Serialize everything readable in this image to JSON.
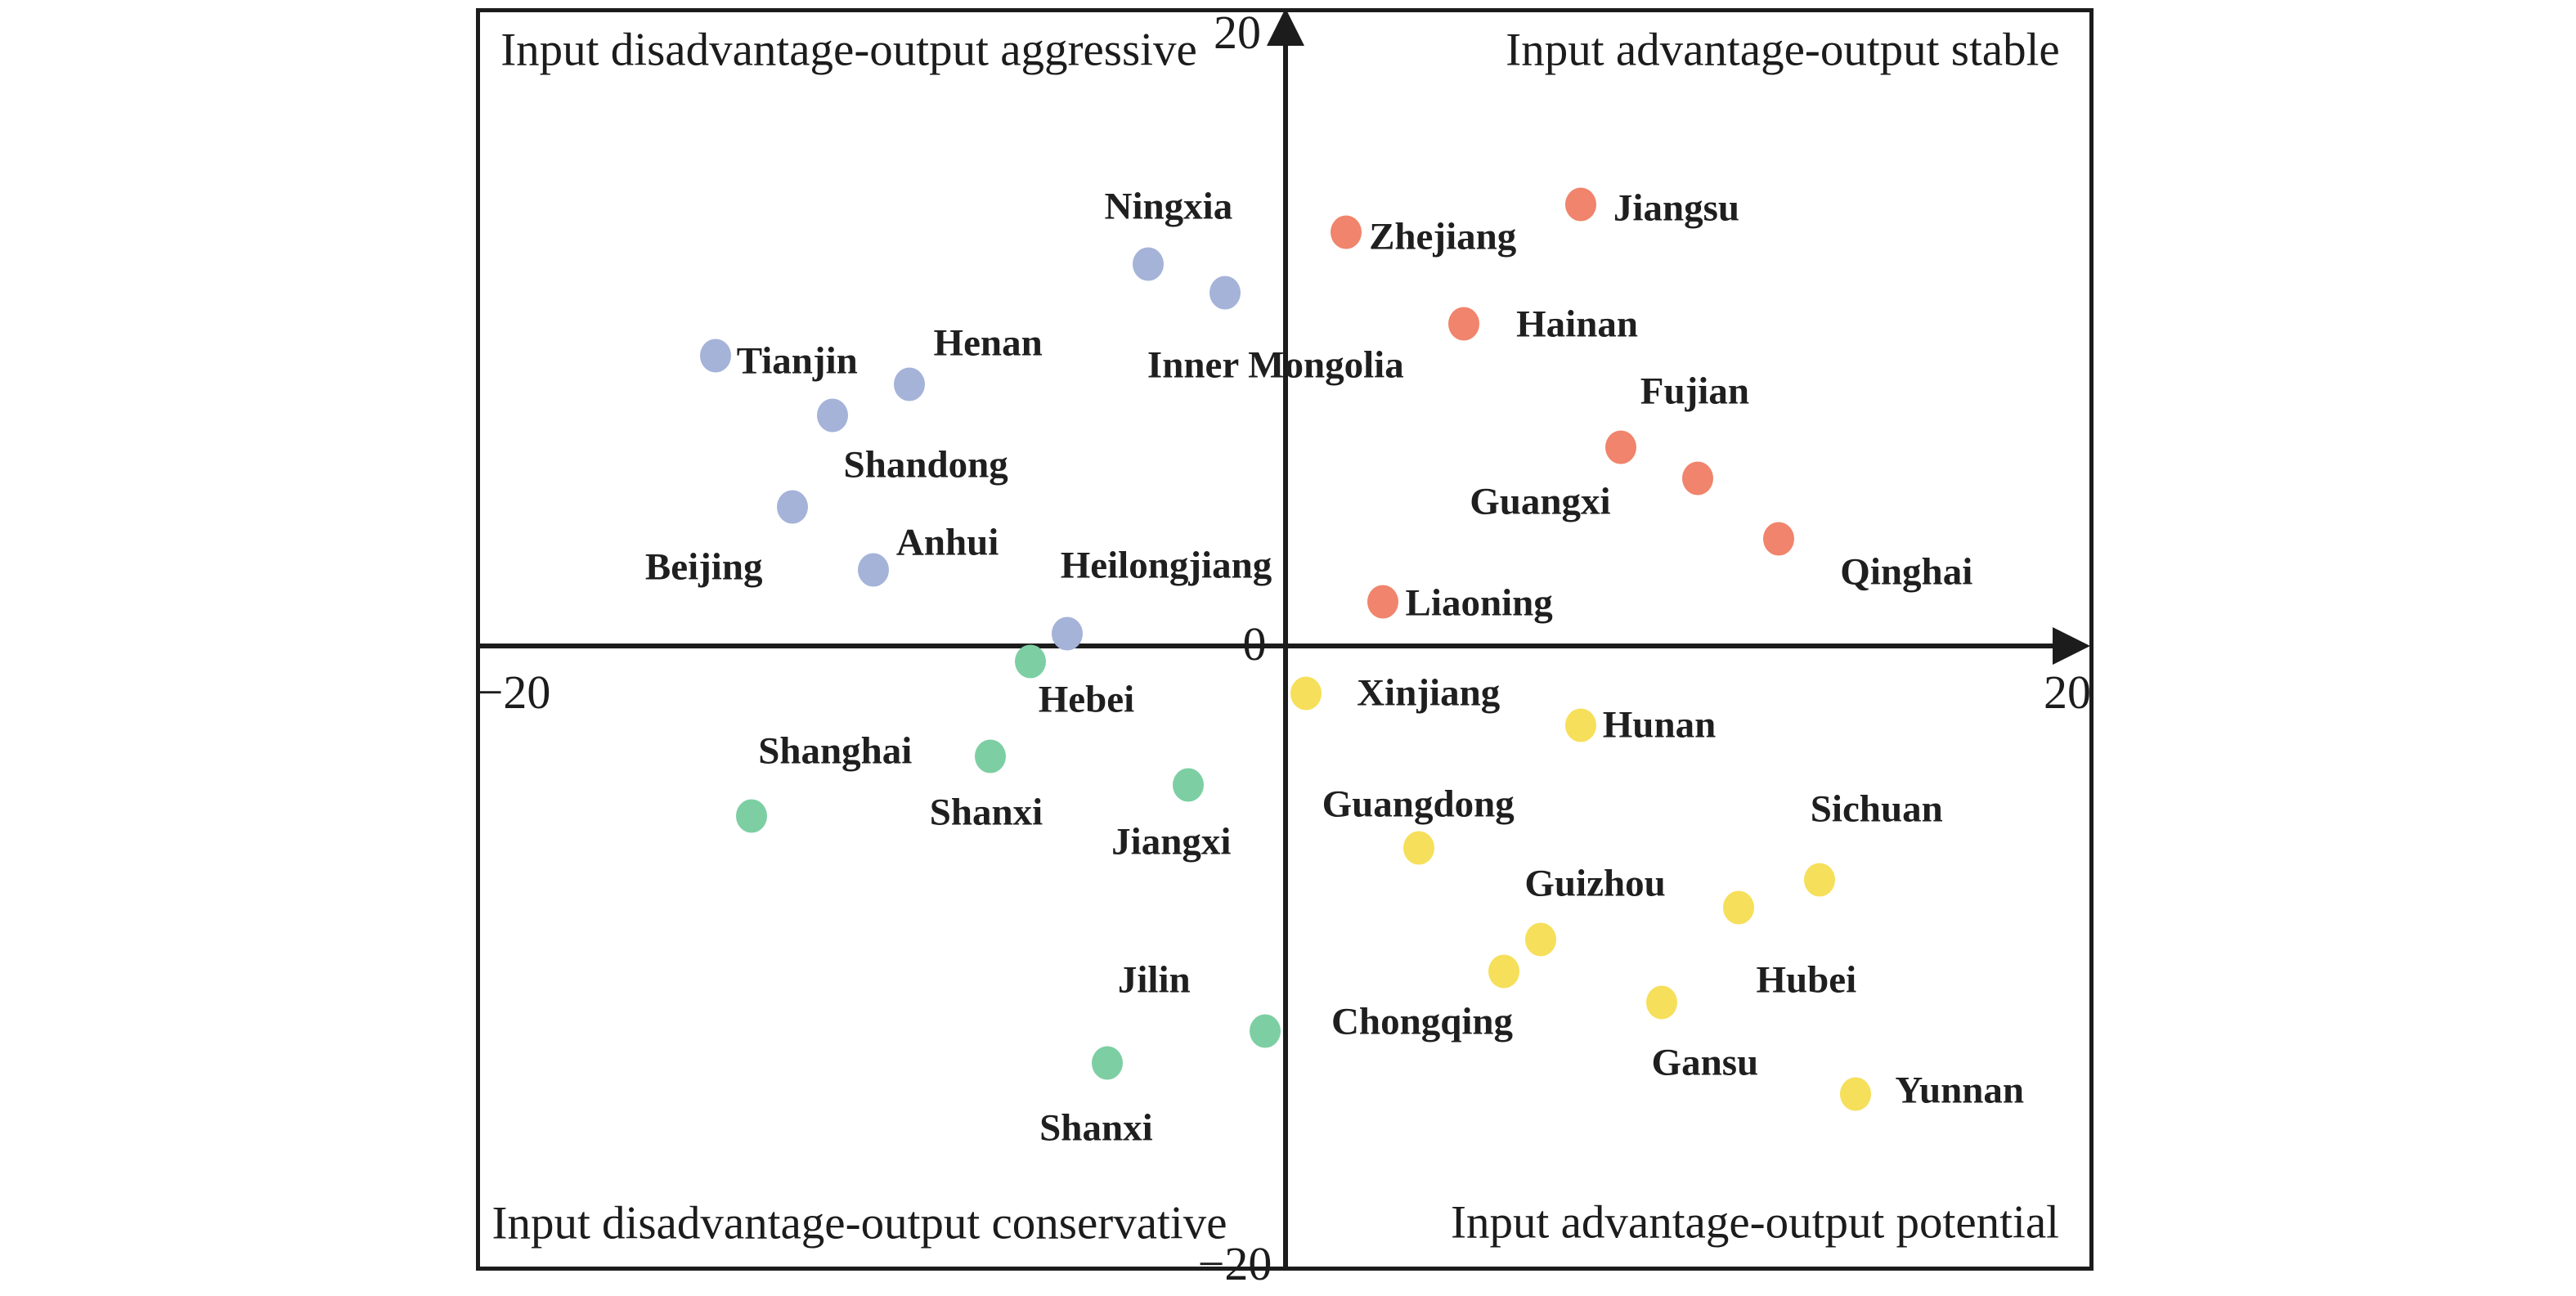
{
  "axis_ticks": {
    "top": "20",
    "right": "20",
    "left": "−20",
    "bottom": "−20",
    "origin": "0"
  },
  "chart_data": {
    "type": "scatter",
    "title": "",
    "xlabel": "",
    "ylabel": "",
    "xlim": [
      -20,
      20
    ],
    "ylim": [
      -20,
      20
    ],
    "grid": false,
    "legend": "none (points labeled directly; quadrant captions serve as group names)",
    "quadrant_labels": [
      {
        "position": "top-left",
        "text": "Input disadvantage-output aggressive"
      },
      {
        "position": "top-right",
        "text": "Input advantage-output stable"
      },
      {
        "position": "bottom-left",
        "text": "Input disadvantage-output conservative"
      },
      {
        "position": "bottom-right",
        "text": "Input advantage-output potential"
      }
    ],
    "layout_hints": {
      "marker_diameter_px": 38,
      "axis_arrows": [
        "top",
        "right"
      ],
      "tick_values_shown": [
        -20,
        0,
        20
      ]
    },
    "series": [
      {
        "name": "Input disadvantage-output aggressive",
        "color": "#A5B3D9",
        "points": [
          {
            "label": "Ningxia",
            "x": -3.4,
            "y": 12.1,
            "label_dx": 25,
            "label_dy": -70
          },
          {
            "label": "Inner Mongolia",
            "x": -1.5,
            "y": 11.2,
            "label_dx": 62,
            "label_dy": 89
          },
          {
            "label": "Tianjin",
            "x": -14.1,
            "y": 9.2,
            "label_dx": 100,
            "label_dy": 7
          },
          {
            "label": "Henan",
            "x": -9.3,
            "y": 8.3,
            "label_dx": 96,
            "label_dy": -50
          },
          {
            "label": "Shandong",
            "x": -11.2,
            "y": 7.3,
            "label_dx": 114,
            "label_dy": 61
          },
          {
            "label": "Beijing",
            "x": -12.2,
            "y": 4.4,
            "label_dx": -108,
            "label_dy": 74
          },
          {
            "label": "Anhui",
            "x": -10.2,
            "y": 2.4,
            "label_dx": 91,
            "label_dy": -33
          },
          {
            "label": "Heilongjiang",
            "x": -5.4,
            "y": 0.4,
            "label_dx": 121,
            "label_dy": -83
          }
        ]
      },
      {
        "name": "Input advantage-output stable",
        "color": "#F0846C",
        "points": [
          {
            "label": "Zhejiang",
            "x": 1.5,
            "y": 13.1,
            "label_dx": 118,
            "label_dy": 6
          },
          {
            "label": "Jiangsu",
            "x": 7.3,
            "y": 14.0,
            "label_dx": 117,
            "label_dy": 5
          },
          {
            "label": "Hainan",
            "x": 4.4,
            "y": 10.2,
            "label_dx": 139,
            "label_dy": 1
          },
          {
            "label": "Guangxi",
            "x": 8.3,
            "y": 6.3,
            "label_dx": -99,
            "label_dy": 67
          },
          {
            "label": "Fujian",
            "x": 10.2,
            "y": 5.3,
            "label_dx": -4,
            "label_dy": -106
          },
          {
            "label": "Qinghai",
            "x": 12.2,
            "y": 3.4,
            "label_dx": 156,
            "label_dy": 41
          },
          {
            "label": "Liaoning",
            "x": 2.4,
            "y": 1.4,
            "label_dx": 118,
            "label_dy": 2
          }
        ]
      },
      {
        "name": "Input disadvantage-output conservative",
        "color": "#7DCFA3",
        "points": [
          {
            "label": "Hebei",
            "x": -6.3,
            "y": -0.5,
            "label_dx": 68,
            "label_dy": 47
          },
          {
            "label": "Shanxi",
            "x": -7.3,
            "y": -3.5,
            "label_dx": -5,
            "label_dy": 69
          },
          {
            "label": "Shanghai",
            "x": -13.2,
            "y": -5.4,
            "label_dx": 102,
            "label_dy": -79
          },
          {
            "label": "Jiangxi",
            "x": -2.4,
            "y": -4.4,
            "label_dx": -21,
            "label_dy": 70
          },
          {
            "label": "Jilin",
            "x": -0.5,
            "y": -12.2,
            "label_dx": -136,
            "label_dy": -62
          },
          {
            "label": "Shanxi",
            "x": -4.4,
            "y": -13.2,
            "label_dx": -14,
            "label_dy": 80
          }
        ]
      },
      {
        "name": "Input advantage-output potential",
        "color": "#F6DF5A",
        "points": [
          {
            "label": "Xinjiang",
            "x": 0.5,
            "y": -1.5,
            "label_dx": 150,
            "label_dy": 0
          },
          {
            "label": "Hunan",
            "x": 7.3,
            "y": -2.5,
            "label_dx": 96,
            "label_dy": 0
          },
          {
            "label": "Guangdong",
            "x": 3.3,
            "y": -6.4,
            "label_dx": -1,
            "label_dy": -53
          },
          {
            "label": "Sichuan",
            "x": 13.2,
            "y": -7.4,
            "label_dx": 70,
            "label_dy": -86
          },
          {
            "label": "Guizhou",
            "x": 6.3,
            "y": -9.3,
            "label_dx": 67,
            "label_dy": -68
          },
          {
            "label": "Hubei",
            "x": 11.2,
            "y": -8.3,
            "label_dx": 83,
            "label_dy": 89
          },
          {
            "label": "Chongqing",
            "x": 5.4,
            "y": -10.3,
            "label_dx": -100,
            "label_dy": 62
          },
          {
            "label": "Gansu",
            "x": 9.3,
            "y": -11.3,
            "label_dx": 53,
            "label_dy": 74
          },
          {
            "label": "Yunnan",
            "x": 14.1,
            "y": -14.2,
            "label_dx": 127,
            "label_dy": -4
          }
        ]
      }
    ]
  }
}
